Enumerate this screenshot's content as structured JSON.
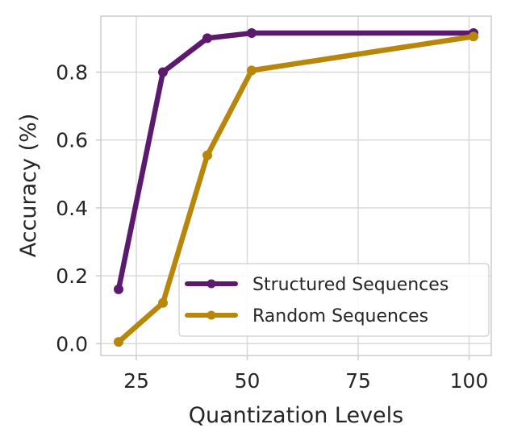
{
  "chart_data": {
    "type": "line",
    "title": "",
    "xlabel": "Quantization Levels",
    "ylabel": "Accuracy (%)",
    "xlim": [
      17,
      105
    ],
    "ylim": [
      -0.035,
      0.965
    ],
    "xticks": [
      25,
      50,
      75,
      100
    ],
    "yticks": [
      0.0,
      0.2,
      0.4,
      0.6,
      0.8
    ],
    "xtick_labels": [
      "25",
      "50",
      "75",
      "100"
    ],
    "ytick_labels": [
      "0.0",
      "0.2",
      "0.4",
      "0.6",
      "0.8"
    ],
    "grid": true,
    "legend_position": "lower-right",
    "series": [
      {
        "name": "Structured Sequences",
        "color": "#5b1a6e",
        "x": [
          21,
          31,
          41,
          51,
          101
        ],
        "y": [
          0.16,
          0.8,
          0.9,
          0.915,
          0.915
        ]
      },
      {
        "name": "Random Sequences",
        "color": "#b8860b",
        "x": [
          21,
          31,
          41,
          51,
          101
        ],
        "y": [
          0.005,
          0.12,
          0.555,
          0.805,
          0.905
        ]
      }
    ]
  }
}
